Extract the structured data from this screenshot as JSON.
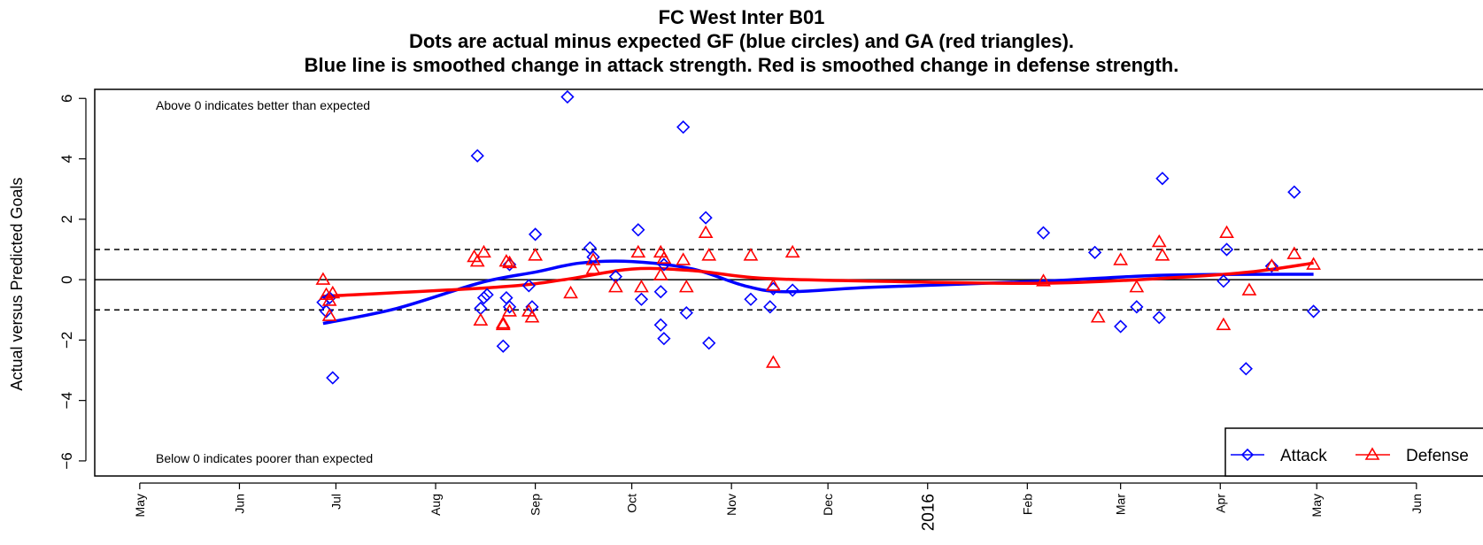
{
  "chart_data": {
    "type": "scatter",
    "title": "FC West Inter B01",
    "subtitle_lines": [
      "Dots are actual minus expected GF (blue circles) and GA (red triangles).",
      "Blue line is smoothed change in attack strength. Red is smoothed change in defense strength."
    ],
    "ylabel": "Actual versus Predicted Goals",
    "xlabel": "",
    "ylim": [
      -6.5,
      6.3
    ],
    "xlim": [
      "2015-04-17",
      "2016-06-25"
    ],
    "y_ticks": [
      -6,
      -4,
      -2,
      0,
      2,
      4,
      6
    ],
    "x_ticks": [
      {
        "label": "May",
        "date": "2015-05-01"
      },
      {
        "label": "Jun",
        "date": "2015-06-01"
      },
      {
        "label": "Jul",
        "date": "2015-07-01"
      },
      {
        "label": "Aug",
        "date": "2015-08-01"
      },
      {
        "label": "Sep",
        "date": "2015-09-01"
      },
      {
        "label": "Oct",
        "date": "2015-10-01"
      },
      {
        "label": "Nov",
        "date": "2015-11-01"
      },
      {
        "label": "Dec",
        "date": "2015-12-01"
      },
      {
        "label": "2016",
        "date": "2016-01-01"
      },
      {
        "label": "Feb",
        "date": "2016-02-01"
      },
      {
        "label": "Mar",
        "date": "2016-03-01"
      },
      {
        "label": "Apr",
        "date": "2016-04-01"
      },
      {
        "label": "May",
        "date": "2016-05-01"
      },
      {
        "label": "Jun",
        "date": "2016-06-01"
      }
    ],
    "reference_lines": [
      {
        "y": 0,
        "style": "solid"
      },
      {
        "y": 1,
        "style": "dashed"
      },
      {
        "y": -1,
        "style": "dashed"
      }
    ],
    "annotations": [
      {
        "text": "Above 0 indicates better than expected",
        "position": "top-left"
      },
      {
        "text": "Below 0 indicates poorer than expected",
        "position": "bottom-left"
      }
    ],
    "legend": {
      "placement": "bottom-right",
      "entries": [
        "Attack",
        "Defense"
      ]
    },
    "series": [
      {
        "name": "Attack",
        "kind": "points",
        "color": "#0000ff",
        "marker": "diamond",
        "points": [
          {
            "x": "2015-06-27",
            "y": -0.75
          },
          {
            "x": "2015-06-28",
            "y": -1.05
          },
          {
            "x": "2015-06-29",
            "y": -0.6
          },
          {
            "x": "2015-06-30",
            "y": -3.25
          },
          {
            "x": "2015-08-14",
            "y": 4.1
          },
          {
            "x": "2015-08-15",
            "y": -0.95
          },
          {
            "x": "2015-08-16",
            "y": -0.6
          },
          {
            "x": "2015-08-17",
            "y": -0.5
          },
          {
            "x": "2015-08-22",
            "y": -2.2
          },
          {
            "x": "2015-08-23",
            "y": -0.6
          },
          {
            "x": "2015-08-24",
            "y": -0.9
          },
          {
            "x": "2015-08-24",
            "y": 0.5
          },
          {
            "x": "2015-08-30",
            "y": -0.2
          },
          {
            "x": "2015-08-31",
            "y": -0.9
          },
          {
            "x": "2015-09-01",
            "y": 1.5
          },
          {
            "x": "2015-09-11",
            "y": 6.05
          },
          {
            "x": "2015-09-18",
            "y": 1.05
          },
          {
            "x": "2015-09-19",
            "y": 0.75
          },
          {
            "x": "2015-09-26",
            "y": 0.1
          },
          {
            "x": "2015-10-03",
            "y": 1.65
          },
          {
            "x": "2015-10-04",
            "y": -0.65
          },
          {
            "x": "2015-10-10",
            "y": -0.4
          },
          {
            "x": "2015-10-10",
            "y": -1.5
          },
          {
            "x": "2015-10-11",
            "y": -1.95
          },
          {
            "x": "2015-10-11",
            "y": 0.5
          },
          {
            "x": "2015-10-17",
            "y": 5.05
          },
          {
            "x": "2015-10-18",
            "y": -1.1
          },
          {
            "x": "2015-10-24",
            "y": 2.05
          },
          {
            "x": "2015-10-25",
            "y": -2.1
          },
          {
            "x": "2015-11-07",
            "y": -0.65
          },
          {
            "x": "2015-11-13",
            "y": -0.9
          },
          {
            "x": "2015-11-14",
            "y": -0.3
          },
          {
            "x": "2015-11-20",
            "y": -0.35
          },
          {
            "x": "2016-02-06",
            "y": 1.55
          },
          {
            "x": "2016-02-22",
            "y": 0.9
          },
          {
            "x": "2016-03-01",
            "y": -1.55
          },
          {
            "x": "2016-03-06",
            "y": -0.9
          },
          {
            "x": "2016-03-13",
            "y": -1.25
          },
          {
            "x": "2016-03-14",
            "y": 3.35
          },
          {
            "x": "2016-04-02",
            "y": -0.05
          },
          {
            "x": "2016-04-03",
            "y": 1.0
          },
          {
            "x": "2016-04-09",
            "y": -2.95
          },
          {
            "x": "2016-04-17",
            "y": 0.45
          },
          {
            "x": "2016-04-24",
            "y": 2.9
          },
          {
            "x": "2016-04-30",
            "y": -1.05
          }
        ]
      },
      {
        "name": "Defense",
        "kind": "points",
        "color": "#ff0000",
        "marker": "triangle",
        "points": [
          {
            "x": "2015-06-27",
            "y": 0.0
          },
          {
            "x": "2015-06-28",
            "y": -0.5
          },
          {
            "x": "2015-06-29",
            "y": -0.7
          },
          {
            "x": "2015-06-29",
            "y": -1.2
          },
          {
            "x": "2015-06-30",
            "y": -0.45
          },
          {
            "x": "2015-08-13",
            "y": 0.75
          },
          {
            "x": "2015-08-14",
            "y": 0.6
          },
          {
            "x": "2015-08-15",
            "y": -1.35
          },
          {
            "x": "2015-08-16",
            "y": 0.9
          },
          {
            "x": "2015-08-22",
            "y": -1.5
          },
          {
            "x": "2015-08-22",
            "y": -1.45
          },
          {
            "x": "2015-08-23",
            "y": 0.6
          },
          {
            "x": "2015-08-24",
            "y": -1.05
          },
          {
            "x": "2015-08-24",
            "y": 0.55
          },
          {
            "x": "2015-08-30",
            "y": -1.05
          },
          {
            "x": "2015-08-31",
            "y": -1.25
          },
          {
            "x": "2015-09-01",
            "y": 0.8
          },
          {
            "x": "2015-09-12",
            "y": -0.45
          },
          {
            "x": "2015-09-19",
            "y": 0.35
          },
          {
            "x": "2015-09-19",
            "y": 0.65
          },
          {
            "x": "2015-09-26",
            "y": -0.25
          },
          {
            "x": "2015-10-03",
            "y": 0.9
          },
          {
            "x": "2015-10-04",
            "y": -0.25
          },
          {
            "x": "2015-10-10",
            "y": 0.9
          },
          {
            "x": "2015-10-10",
            "y": 0.15
          },
          {
            "x": "2015-10-11",
            "y": 0.7
          },
          {
            "x": "2015-10-17",
            "y": 0.65
          },
          {
            "x": "2015-10-18",
            "y": -0.25
          },
          {
            "x": "2015-10-24",
            "y": 1.55
          },
          {
            "x": "2015-10-25",
            "y": 0.8
          },
          {
            "x": "2015-11-07",
            "y": 0.8
          },
          {
            "x": "2015-11-14",
            "y": -0.2
          },
          {
            "x": "2015-11-14",
            "y": -2.75
          },
          {
            "x": "2015-11-20",
            "y": 0.9
          },
          {
            "x": "2016-02-06",
            "y": -0.05
          },
          {
            "x": "2016-02-23",
            "y": -1.25
          },
          {
            "x": "2016-03-01",
            "y": 0.65
          },
          {
            "x": "2016-03-06",
            "y": -0.25
          },
          {
            "x": "2016-03-13",
            "y": 1.25
          },
          {
            "x": "2016-03-14",
            "y": 0.8
          },
          {
            "x": "2016-04-02",
            "y": -1.5
          },
          {
            "x": "2016-04-03",
            "y": 1.55
          },
          {
            "x": "2016-04-10",
            "y": -0.35
          },
          {
            "x": "2016-04-17",
            "y": 0.45
          },
          {
            "x": "2016-04-24",
            "y": 0.85
          },
          {
            "x": "2016-04-30",
            "y": 0.5
          }
        ]
      },
      {
        "name": "Attack",
        "kind": "smoothed line",
        "color": "#0000ff",
        "points": [
          {
            "x": "2015-06-27",
            "y": -1.45
          },
          {
            "x": "2015-07-20",
            "y": -0.95
          },
          {
            "x": "2015-08-15",
            "y": -0.1
          },
          {
            "x": "2015-09-01",
            "y": 0.25
          },
          {
            "x": "2015-09-15",
            "y": 0.55
          },
          {
            "x": "2015-10-01",
            "y": 0.6
          },
          {
            "x": "2015-10-20",
            "y": 0.35
          },
          {
            "x": "2015-11-05",
            "y": -0.2
          },
          {
            "x": "2015-11-18",
            "y": -0.4
          },
          {
            "x": "2015-12-15",
            "y": -0.25
          },
          {
            "x": "2016-02-06",
            "y": -0.05
          },
          {
            "x": "2016-03-15",
            "y": 0.15
          },
          {
            "x": "2016-04-30",
            "y": 0.18
          }
        ]
      },
      {
        "name": "Defense",
        "kind": "smoothed line",
        "color": "#ff0000",
        "points": [
          {
            "x": "2015-06-27",
            "y": -0.55
          },
          {
            "x": "2015-08-20",
            "y": -0.25
          },
          {
            "x": "2015-09-10",
            "y": 0.0
          },
          {
            "x": "2015-10-01",
            "y": 0.35
          },
          {
            "x": "2015-10-20",
            "y": 0.3
          },
          {
            "x": "2015-11-10",
            "y": 0.05
          },
          {
            "x": "2015-12-15",
            "y": -0.05
          },
          {
            "x": "2016-02-06",
            "y": -0.12
          },
          {
            "x": "2016-03-15",
            "y": 0.05
          },
          {
            "x": "2016-04-10",
            "y": 0.25
          },
          {
            "x": "2016-04-30",
            "y": 0.55
          }
        ]
      }
    ]
  }
}
